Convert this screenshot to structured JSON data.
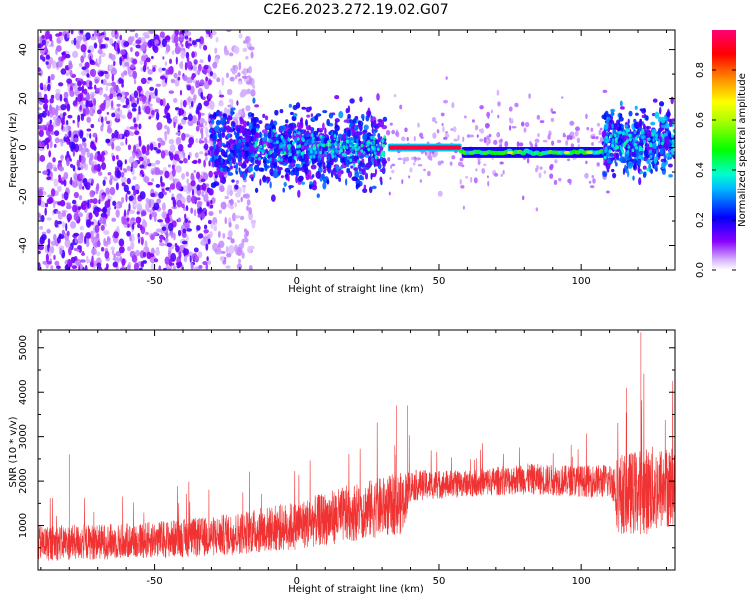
{
  "figure_title": "C2E6.2023.272.19.02.G07",
  "chart_data": [
    {
      "type": "heatmap",
      "xlabel": "Height of straight line (km)",
      "ylabel": "Frequency (Hz)",
      "xlim": [
        -91,
        133
      ],
      "ylim": [
        -50,
        48
      ],
      "xticks": [
        -50,
        0,
        50,
        100
      ],
      "xtick_labels": [
        "-50",
        "0",
        "50",
        "100"
      ],
      "yticks": [
        -40,
        -20,
        0,
        20,
        40
      ],
      "ytick_labels": [
        "-40",
        "-20",
        "0",
        "20",
        "40"
      ],
      "colorbar": {
        "label": "Normalized spectral amplitude",
        "range": [
          0,
          0.96
        ],
        "ticks": [
          0.0,
          0.2,
          0.4,
          0.6,
          0.8
        ],
        "tick_labels": [
          "0.0",
          "0.2",
          "0.4",
          "0.6",
          "0.8"
        ],
        "colormap": "hsv-rainbow"
      },
      "features": [
        {
          "x_range": [
            -91,
            -30
          ],
          "freq_spread": 48,
          "amplitude": 0.12,
          "description": "broadband scattered noise"
        },
        {
          "x_range": [
            -30,
            31
          ],
          "freq_spread": 12,
          "amplitude": 0.25
        },
        {
          "x_range": [
            32,
            58
          ],
          "center_freq": 0,
          "amplitude": 0.95
        },
        {
          "x_range": [
            58,
            108
          ],
          "center_freq": -2,
          "amplitude": 0.45
        },
        {
          "x_range": [
            108,
            133
          ],
          "freq_spread": 12,
          "amplitude": 0.3
        }
      ]
    },
    {
      "type": "line",
      "xlabel": "Height of straight line (km)",
      "ylabel": "SNR (10 * v/v)",
      "xlim": [
        -91,
        133
      ],
      "ylim": [
        0,
        5400
      ],
      "xticks": [
        -50,
        0,
        50,
        100
      ],
      "xtick_labels": [
        "-50",
        "0",
        "50",
        "100"
      ],
      "yticks": [
        1000,
        2000,
        3000,
        4000,
        5000
      ],
      "ytick_labels": [
        "1000",
        "2000",
        "3000",
        "4000",
        "5000"
      ],
      "color": "#f03232",
      "envelope": {
        "x": [
          -91,
          -60,
          -30,
          0,
          20,
          37,
          40,
          60,
          80,
          100,
          111,
          113,
          125,
          133
        ],
        "mean": [
          600,
          650,
          750,
          1000,
          1300,
          1500,
          1900,
          1950,
          2050,
          2000,
          2000,
          1700,
          1800,
          1900
        ],
        "spread": [
          400,
          400,
          450,
          550,
          650,
          700,
          350,
          300,
          350,
          350,
          400,
          900,
          1000,
          900
        ]
      },
      "peaks": [
        {
          "x": 121,
          "y": 5350
        },
        {
          "x": 116,
          "y": 4100
        },
        {
          "x": 35,
          "y": 3700
        },
        {
          "x": 39,
          "y": 3700
        },
        {
          "x": -80,
          "y": 2600
        }
      ]
    }
  ],
  "colors": {
    "plot_border": "#000000",
    "line": "#f03232"
  }
}
